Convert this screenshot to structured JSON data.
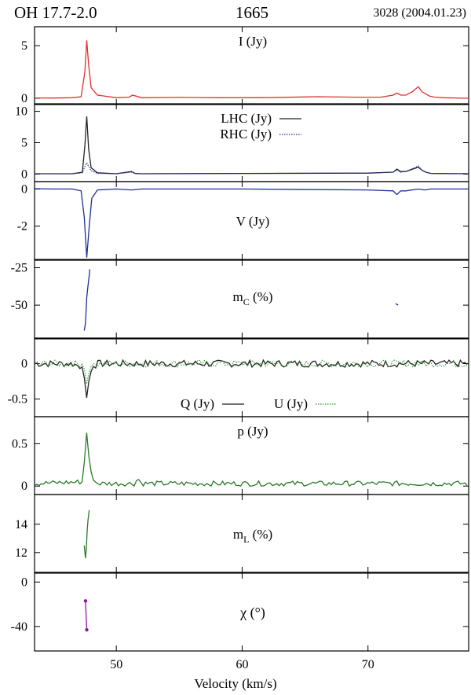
{
  "header": {
    "source": "OH 17.7-2.0",
    "frequency": "1665",
    "epoch": "3028 (2004.01.23)"
  },
  "xlabel": "Velocity (km/s)",
  "colors": {
    "I": "#e03030",
    "LHC": "#222222",
    "RHC": "#2030a0",
    "V": "#1c2fa0",
    "mC": "#1c2fa0",
    "Q": "#222222",
    "U": "#2e9a2e",
    "p": "#2a7a2a",
    "mL": "#2a7a2a",
    "chi": "#8a1a9a"
  },
  "chart_data": {
    "type": "line",
    "shared_x": {
      "label": "Velocity (km/s)",
      "xlim": [
        43.5,
        78
      ],
      "ticks": [
        50,
        60,
        70
      ]
    },
    "panels": [
      {
        "id": "I",
        "label": "I (Jy)",
        "ylim": [
          -0.6,
          6.8
        ],
        "yticks": [
          0,
          5
        ],
        "series": [
          {
            "name": "I (Jy)",
            "style": "solid",
            "x": [
              43.5,
              45,
              46.5,
              47.2,
              47.5,
              47.65,
              47.8,
              48,
              48.5,
              50,
              51,
              51.3,
              52,
              55,
              58,
              62,
              66,
              69,
              71,
              72,
              72.3,
              72.6,
              73,
              73.5,
              74,
              74.3,
              74.6,
              74.9,
              75.3,
              76,
              78
            ],
            "y": [
              0.03,
              0.02,
              0.05,
              0.15,
              2.5,
              5.5,
              3.2,
              1.0,
              0.3,
              0.05,
              0.1,
              0.3,
              0.05,
              0.08,
              0.05,
              0.06,
              0.15,
              0.1,
              0.1,
              0.3,
              0.5,
              0.3,
              0.3,
              0.6,
              1.1,
              0.6,
              0.4,
              0.2,
              0.1,
              0.05,
              0.0
            ]
          }
        ]
      },
      {
        "id": "LR",
        "ylim": [
          -1.2,
          11.2
        ],
        "yticks": [
          0,
          5,
          10
        ],
        "legend": [
          "LHC (Jy)",
          "RHC (Jy)"
        ],
        "series": [
          {
            "name": "LHC (Jy)",
            "style": "solid",
            "x": [
              43.5,
              46.5,
              47.3,
              47.5,
              47.65,
              47.8,
              48.0,
              48.5,
              50,
              51.2,
              51.5,
              52,
              60,
              70,
              72,
              72.3,
              72.6,
              73,
              74,
              74.3,
              74.6,
              75,
              78
            ],
            "y": [
              0.05,
              0.05,
              0.3,
              4.5,
              9.2,
              4.0,
              1.0,
              0.2,
              0.05,
              0.4,
              0.1,
              0.05,
              0.1,
              0.15,
              0.3,
              0.8,
              0.4,
              0.4,
              1.1,
              0.6,
              0.3,
              0.1,
              0.05
            ]
          },
          {
            "name": "RHC (Jy)",
            "style": "dotted",
            "x": [
              43.5,
              46.5,
              47.3,
              47.5,
              47.65,
              47.8,
              48.0,
              48.5,
              50,
              51.2,
              51.5,
              52,
              60,
              70,
              72,
              72.3,
              72.6,
              73,
              74,
              74.3,
              74.6,
              75,
              78
            ],
            "y": [
              0.05,
              0.05,
              0.2,
              1.2,
              1.8,
              1.2,
              0.5,
              0.1,
              0.05,
              0.3,
              0.1,
              0.05,
              0.1,
              0.15,
              0.3,
              0.6,
              0.3,
              0.4,
              1.3,
              0.6,
              0.3,
              0.1,
              0.05
            ]
          }
        ]
      },
      {
        "id": "V",
        "label": "V (Jy)",
        "ylim": [
          -3.8,
          0.4
        ],
        "yticks": [
          0,
          -2
        ],
        "series": [
          {
            "name": "V (Jy)",
            "style": "solid",
            "x": [
              43.5,
              45,
              46.5,
              47.2,
              47.45,
              47.65,
              47.85,
              48.05,
              48.5,
              50,
              51.2,
              52,
              60,
              70,
              72,
              72.3,
              72.6,
              73,
              74,
              74.5,
              75,
              78
            ],
            "y": [
              0.02,
              0.0,
              0.0,
              -0.1,
              -1.5,
              -3.7,
              -2.0,
              -0.5,
              -0.05,
              0.0,
              -0.05,
              0.0,
              0.0,
              -0.05,
              -0.1,
              -0.3,
              -0.1,
              -0.1,
              0.0,
              -0.05,
              0.0,
              0.0
            ]
          }
        ]
      },
      {
        "id": "mC",
        "label": "mC (%)",
        "label_main": "m",
        "label_sub": "C",
        "label_tail": " (%)",
        "ylim": [
          -72,
          -20
        ],
        "yticks": [
          -25,
          -50
        ],
        "series": [
          {
            "name": "mC (%)",
            "style": "solid",
            "x": [
              47.45,
              47.55,
              47.65,
              47.75,
              47.85,
              47.9
            ],
            "y": [
              -67,
              -62,
              -45,
              -37,
              -30,
              -26
            ]
          },
          {
            "name": "mC (%) second feature",
            "style": "solid",
            "x": [
              72.2,
              72.4
            ],
            "y": [
              -49,
              -50
            ]
          }
        ]
      },
      {
        "id": "QU",
        "ylim": [
          -0.75,
          0.35
        ],
        "yticks": [
          0,
          -0.5
        ],
        "legend": [
          "Q (Jy)",
          "U (Jy)"
        ],
        "series": [
          {
            "name": "Q (Jy)",
            "style": "solid",
            "noise": 0.05,
            "x": [
              43.5,
              46.5,
              47.3,
              47.5,
              47.65,
              47.85,
              48.1,
              48.5,
              78
            ],
            "y": [
              0.0,
              0.0,
              -0.05,
              -0.25,
              -0.5,
              -0.2,
              -0.05,
              0.0,
              0.0
            ]
          },
          {
            "name": "U (Jy)",
            "style": "dotted",
            "noise": 0.05,
            "x": [
              43.5,
              46.5,
              47.3,
              47.5,
              47.65,
              47.85,
              48.1,
              48.5,
              78
            ],
            "y": [
              0.0,
              0.0,
              0.0,
              -0.1,
              -0.3,
              -0.1,
              0.0,
              0.0,
              0.0
            ]
          }
        ]
      },
      {
        "id": "p",
        "label": "p (Jy)",
        "ylim": [
          -0.1,
          0.82
        ],
        "yticks": [
          0,
          0.5
        ],
        "series": [
          {
            "name": "p (Jy)",
            "style": "solid",
            "noise": 0.03,
            "base": 0.03,
            "x": [
              43.5,
              47.3,
              47.5,
              47.65,
              47.85,
              48.1,
              48.5,
              51.5,
              51.7,
              52,
              78
            ],
            "y": [
              0.03,
              0.05,
              0.35,
              0.65,
              0.3,
              0.08,
              0.03,
              0.03,
              0.1,
              0.03,
              0.03
            ]
          }
        ]
      },
      {
        "id": "mL",
        "label": "mL (%)",
        "label_main": "m",
        "label_sub": "L",
        "label_tail": " (%)",
        "ylim": [
          10.6,
          16.1
        ],
        "yticks": [
          12,
          14
        ],
        "series": [
          {
            "name": "mL (%)",
            "style": "solid",
            "x": [
              47.45,
              47.55,
              47.62,
              47.68,
              47.75,
              47.85
            ],
            "y": [
              12.5,
              11.6,
              12.3,
              13.5,
              14.3,
              15.0
            ]
          }
        ]
      },
      {
        "id": "chi",
        "label": "χ (°)",
        "ylim": [
          -62,
          8
        ],
        "yticks": [
          0,
          -40
        ],
        "series": [
          {
            "name": "χ (°)",
            "style": "solid",
            "markers": true,
            "x": [
              47.55,
              47.65
            ],
            "y": [
              -17,
              -43
            ]
          }
        ]
      }
    ]
  }
}
